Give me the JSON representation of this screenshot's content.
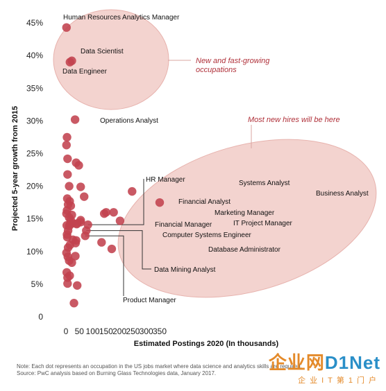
{
  "chart_data": {
    "type": "scatter",
    "xlabel": "Estimated Postings 2020 (In thousands)",
    "ylabel": "Projected 5-year growth from 2015",
    "xlim": [
      0,
      355
    ],
    "ylim": [
      0,
      46
    ],
    "xticks": [
      "0",
      "50",
      "100",
      "150",
      "200",
      "250",
      "300",
      "350"
    ],
    "xtick_values": [
      0,
      50,
      100,
      150,
      200,
      250,
      300,
      350
    ],
    "yticks": [
      "0",
      "5%",
      "10%",
      "15%",
      "20%",
      "25%",
      "30%",
      "35%",
      "40%",
      "45%"
    ],
    "ytick_values": [
      0,
      5,
      10,
      15,
      20,
      25,
      30,
      35,
      40,
      45
    ],
    "grid": false,
    "point_color": "#c1424e",
    "ellipse_color": "#f3d3cf",
    "annotation_color": "#b0313a",
    "labeled_points": [
      {
        "label": "Human Resources Analytics Manager",
        "x": 2,
        "y": 44.3
      },
      {
        "label": "Data Scientist",
        "x": 22,
        "y": 39.2
      },
      {
        "label": "Data Engineer",
        "x": 15,
        "y": 39.0
      },
      {
        "label": "Operations Analyst",
        "x": 34,
        "y": 30.2
      },
      {
        "label": "HR Manager",
        "x": 82,
        "y": 14.1
      },
      {
        "label": "Data Mining Analyst",
        "x": 76,
        "y": 13.2
      },
      {
        "label": "Product Manager",
        "x": 72,
        "y": 12.4
      },
      {
        "label": "Financial Analyst",
        "x": 150,
        "y": 16.0
      },
      {
        "label": "Financial Manager",
        "x": 143,
        "y": 15.8
      },
      {
        "label": "Marketing Manager",
        "x": 178,
        "y": 16.0
      },
      {
        "label": "IT Project Manager",
        "x": 202,
        "y": 14.7
      },
      {
        "label": "Computer Systems Engineer",
        "x": 133,
        "y": 11.4
      },
      {
        "label": "Database Administrator",
        "x": 171,
        "y": 10.4
      },
      {
        "label": "Systems Analyst",
        "x": 247,
        "y": 19.2
      },
      {
        "label": "Business Analyst",
        "x": 350,
        "y": 17.5
      }
    ],
    "other_points": [
      {
        "x": 4,
        "y": 27.5
      },
      {
        "x": 2,
        "y": 26.3
      },
      {
        "x": 6,
        "y": 24.2
      },
      {
        "x": 38,
        "y": 23.6
      },
      {
        "x": 48,
        "y": 23.2
      },
      {
        "x": 6,
        "y": 21.8
      },
      {
        "x": 12,
        "y": 20.0
      },
      {
        "x": 55,
        "y": 19.9
      },
      {
        "x": 68,
        "y": 18.4
      },
      {
        "x": 5,
        "y": 18.1
      },
      {
        "x": 14,
        "y": 17.7
      },
      {
        "x": 8,
        "y": 17.2
      },
      {
        "x": 18,
        "y": 17.0
      },
      {
        "x": 4,
        "y": 16.3
      },
      {
        "x": 2,
        "y": 15.8
      },
      {
        "x": 22,
        "y": 15.6
      },
      {
        "x": 12,
        "y": 15.2
      },
      {
        "x": 18,
        "y": 14.8
      },
      {
        "x": 55,
        "y": 14.8
      },
      {
        "x": 55,
        "y": 14.5
      },
      {
        "x": 24,
        "y": 14.3
      },
      {
        "x": 3,
        "y": 14.0
      },
      {
        "x": 12,
        "y": 13.9
      },
      {
        "x": 16,
        "y": 14.2
      },
      {
        "x": 42,
        "y": 14.3
      },
      {
        "x": 8,
        "y": 13.2
      },
      {
        "x": 4,
        "y": 12.6
      },
      {
        "x": 5,
        "y": 12.2
      },
      {
        "x": 26,
        "y": 11.8
      },
      {
        "x": 38,
        "y": 11.7
      },
      {
        "x": 36,
        "y": 11.3
      },
      {
        "x": 15,
        "y": 11.0
      },
      {
        "x": 8,
        "y": 10.6
      },
      {
        "x": 2,
        "y": 9.8
      },
      {
        "x": 35,
        "y": 9.3
      },
      {
        "x": 7,
        "y": 9.2
      },
      {
        "x": 12,
        "y": 8.6
      },
      {
        "x": 22,
        "y": 8.3
      },
      {
        "x": 3,
        "y": 6.8
      },
      {
        "x": 14,
        "y": 6.3
      },
      {
        "x": 6,
        "y": 6.0
      },
      {
        "x": 42,
        "y": 4.8
      },
      {
        "x": 6,
        "y": 5.1
      },
      {
        "x": 30,
        "y": 2.1
      },
      {
        "x": 40,
        "y": 14.2
      }
    ],
    "annotations": [
      {
        "text": "New and fast-growing\noccupations"
      },
      {
        "text": "Most new hires will be here"
      }
    ]
  },
  "note": "Note: Each dot represents an occupation in the US jobs market where data science and analytics skills are required.",
  "source": "Source: PwC analysis based on Burning Glass Technologies data, January 2017.",
  "watermark": {
    "brand_a": "企业网",
    "brand_b": "D1Net",
    "sub": "企业IT第1门户"
  }
}
